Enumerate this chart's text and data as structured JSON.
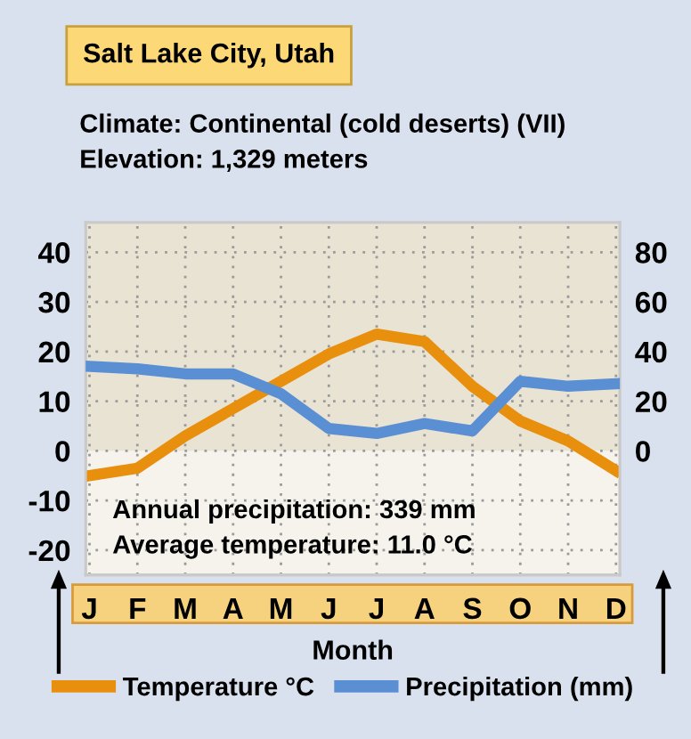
{
  "chart_data": {
    "type": "line",
    "title": "Salt Lake City, Utah",
    "subtitle": "Climate: Continental (cold deserts) (VII)",
    "annotations": [
      "Elevation: 1,329 meters",
      "Annual precipitation: 339 mm",
      "Average temperature: 11.0 °C"
    ],
    "xlabel": "Month",
    "categories": [
      "J",
      "F",
      "M",
      "A",
      "M",
      "J",
      "J",
      "A",
      "S",
      "O",
      "N",
      "D"
    ],
    "series": [
      {
        "name": "Temperature °C",
        "color": "#e8900e",
        "values": [
          -5,
          -3.5,
          3,
          8.5,
          14,
          19.5,
          23.5,
          22,
          13,
          6,
          2,
          -4
        ]
      },
      {
        "name": "Precipitation (mm)",
        "color": "#5b8fd4",
        "axis": "y2",
        "values": [
          34,
          33,
          31,
          31,
          23,
          9,
          7,
          11,
          8,
          28,
          26,
          27
        ]
      }
    ],
    "ylim": [
      -25,
      46
    ],
    "yticks": [
      -20,
      -10,
      0,
      10,
      20,
      30,
      40
    ],
    "y2lim": [
      -50,
      92
    ],
    "y2ticks": [
      0,
      20,
      40,
      60,
      80
    ],
    "bands": [
      {
        "axis": "y",
        "from": 0,
        "to": 46,
        "color": "#e9e3d3"
      }
    ],
    "grid": true,
    "legend": "bottom",
    "line_style": "solid",
    "marker": "none"
  }
}
